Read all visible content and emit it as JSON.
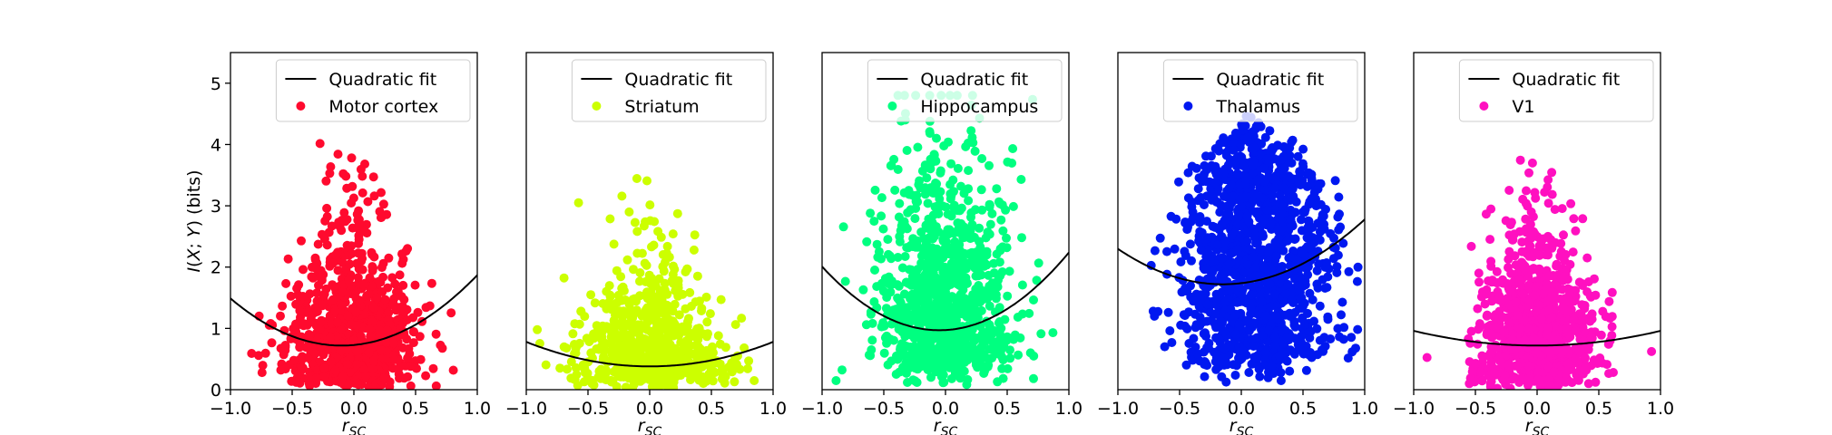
{
  "chart_data": [
    {
      "type": "scatter",
      "series": [
        {
          "name": "Quadratic fit",
          "kind": "line",
          "coeffs": [
            0.72,
            0.32,
            0.95
          ],
          "color": "#000000"
        },
        {
          "name": "Motor cortex",
          "kind": "scatter",
          "color": "#ff0a2e",
          "spread_x": 0.26,
          "center_x": -0.02,
          "max_y": 4.2,
          "n": 900
        }
      ],
      "xlim": [
        -1.0,
        1.0
      ],
      "ylim": [
        0,
        5.5
      ],
      "xticks": [
        "−1.0",
        "−0.5",
        "0.0",
        "0.5",
        "1.0"
      ],
      "yticks": [
        "0",
        "1",
        "2",
        "3",
        "4",
        "5"
      ],
      "xlabel": "r_SC",
      "ylabel": "I(X; Y) (bits)",
      "legend": "top-right"
    },
    {
      "type": "scatter",
      "series": [
        {
          "name": "Quadratic fit",
          "kind": "line",
          "coeffs": [
            0.38,
            0.08,
            0.4
          ],
          "color": "#000000"
        },
        {
          "name": "Striatum",
          "kind": "scatter",
          "color": "#ccff00",
          "spread_x": 0.3,
          "center_x": 0.0,
          "max_y": 3.5,
          "n": 700
        }
      ],
      "xlim": [
        -1.0,
        1.0
      ],
      "ylim": [
        0,
        5.5
      ],
      "xticks": [
        "−1.0",
        "−0.5",
        "0.0",
        "0.5",
        "1.0"
      ],
      "yticks": [],
      "xlabel": "r_SC",
      "ylabel": "",
      "legend": "top-right"
    },
    {
      "type": "scatter",
      "series": [
        {
          "name": "Quadratic fit",
          "kind": "line",
          "coeffs": [
            0.97,
            0.3,
            1.15
          ],
          "color": "#000000"
        },
        {
          "name": "Hippocampus",
          "kind": "scatter",
          "color": "#00ff80",
          "spread_x": 0.28,
          "center_x": 0.0,
          "max_y": 4.8,
          "n": 1000
        }
      ],
      "xlim": [
        -1.0,
        1.0
      ],
      "ylim": [
        0,
        5.5
      ],
      "xticks": [
        "−1.0",
        "−0.5",
        "0.0",
        "0.5",
        "1.0"
      ],
      "yticks": [],
      "xlabel": "r_SC",
      "ylabel": "",
      "legend": "top-right"
    },
    {
      "type": "scatter",
      "series": [
        {
          "name": "Quadratic fit",
          "kind": "line",
          "coeffs": [
            1.72,
            0.3,
            0.8
          ],
          "color": "#000000"
        },
        {
          "name": "Thalamus",
          "kind": "scatter",
          "color": "#0018f0",
          "spread_x": 0.3,
          "center_x": 0.1,
          "max_y": 4.8,
          "n": 1300
        }
      ],
      "xlim": [
        -1.0,
        1.0
      ],
      "ylim": [
        0,
        5.5
      ],
      "xticks": [
        "−1.0",
        "−0.5",
        "0.0",
        "0.5",
        "1.0"
      ],
      "yticks": [],
      "xlabel": "r_SC",
      "ylabel": "",
      "legend": "top-right"
    },
    {
      "type": "scatter",
      "series": [
        {
          "name": "Quadratic fit",
          "kind": "line",
          "coeffs": [
            0.72,
            0.06,
            0.24
          ],
          "color": "#000000"
        },
        {
          "name": "V1",
          "kind": "scatter",
          "color": "#ff10c0",
          "spread_x": 0.25,
          "center_x": 0.0,
          "max_y": 4.3,
          "n": 900
        }
      ],
      "xlim": [
        -1.0,
        1.0
      ],
      "ylim": [
        0,
        5.5
      ],
      "xticks": [
        "−1.0",
        "−0.5",
        "0.0",
        "0.5",
        "1.0"
      ],
      "yticks": [],
      "xlabel": "r_SC",
      "ylabel": "",
      "legend": "top-right"
    }
  ]
}
